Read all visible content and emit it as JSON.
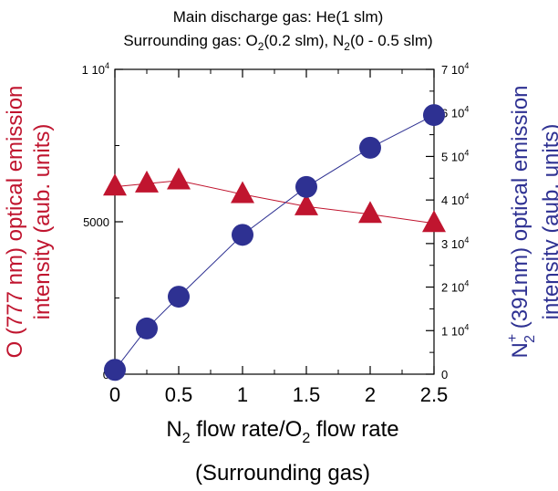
{
  "chart_data": {
    "type": "scatter",
    "title_line1": "Main discharge gas: He(1 slm)",
    "title_line2_prefix": "Surrounding gas: O",
    "title_line2_sub1": "2",
    "title_line2_mid": "(0.2 slm), N",
    "title_line2_sub2": "2",
    "title_line2_suffix": "(0 - 0.5 slm)",
    "xlabel_prefix": "N",
    "xlabel_sub1": "2",
    "xlabel_mid": " flow rate/O",
    "xlabel_sub2": "2",
    "xlabel_suffix": " flow rate",
    "xlabel_line2": "(Surrounding gas)",
    "ylabel_left_line1": "O (777 nm) optical emission",
    "ylabel_left_line2": "intensity (aub. units)",
    "ylabel_right_prefix": "N",
    "ylabel_right_sup": "+",
    "ylabel_right_sub": "2",
    "ylabel_right_suffix": " (391nm) optical emission",
    "ylabel_right_line2": "intensity (aub. units)",
    "xlim": [
      0,
      2.5
    ],
    "ylim_left": [
      0,
      10000
    ],
    "ylim_right": [
      0,
      70000
    ],
    "x_ticks": [
      "0",
      "0.5",
      "1",
      "1.5",
      "2",
      "2.5"
    ],
    "x_tick_values": [
      0,
      0.5,
      1,
      1.5,
      2,
      2.5
    ],
    "y_left_ticks": [
      {
        "value": 0,
        "mant": "0",
        "exp": ""
      },
      {
        "value": 5000,
        "mant": "5000",
        "exp": ""
      },
      {
        "value": 10000,
        "mant": "1 10",
        "exp": "4"
      }
    ],
    "y_right_ticks": [
      {
        "value": 0,
        "mant": "0",
        "exp": ""
      },
      {
        "value": 10000,
        "mant": "1 10",
        "exp": "4"
      },
      {
        "value": 20000,
        "mant": "2 10",
        "exp": "4"
      },
      {
        "value": 30000,
        "mant": "3 10",
        "exp": "4"
      },
      {
        "value": 40000,
        "mant": "4 10",
        "exp": "4"
      },
      {
        "value": 50000,
        "mant": "5 10",
        "exp": "4"
      },
      {
        "value": 60000,
        "mant": "6 10",
        "exp": "4"
      },
      {
        "value": 70000,
        "mant": "7 10",
        "exp": "4"
      }
    ],
    "series": [
      {
        "axis": "left",
        "marker": "triangle",
        "color": "#c0152f",
        "x": [
          0,
          0.25,
          0.5,
          1,
          1.5,
          2,
          2.5
        ],
        "y": [
          6150,
          6250,
          6350,
          5900,
          5500,
          5250,
          4950
        ]
      },
      {
        "axis": "right",
        "marker": "circle",
        "color": "#2e3192",
        "x": [
          0,
          0.25,
          0.5,
          1,
          1.5,
          2,
          2.5
        ],
        "y": [
          1000,
          10500,
          17800,
          32000,
          43000,
          52000,
          59500
        ]
      }
    ],
    "colors": {
      "left_axis_label": "#c0152f",
      "right_axis_label": "#2e3192",
      "axis": "#000000"
    }
  }
}
